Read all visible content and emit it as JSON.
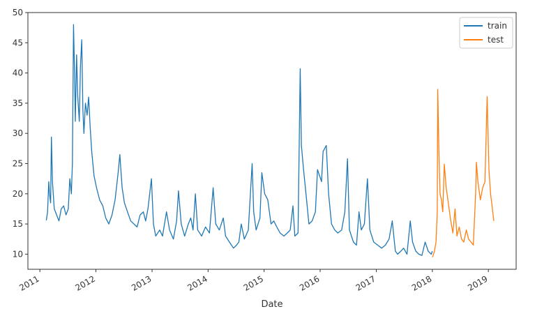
{
  "chart_data": {
    "type": "line",
    "title": "",
    "xlabel": "Date",
    "ylabel": "",
    "xlim": [
      "2010-10-15",
      "2019-07-01"
    ],
    "ylim": [
      7.5,
      50
    ],
    "yticks": [
      10,
      15,
      20,
      25,
      30,
      35,
      40,
      45,
      50
    ],
    "xticks": [
      "2011",
      "2012",
      "2013",
      "2014",
      "2015",
      "2016",
      "2017",
      "2018",
      "2019"
    ],
    "grid": false,
    "legend": "top-right",
    "series": [
      {
        "name": "train",
        "color": "#1f77b4",
        "points": [
          [
            "2011-02-12",
            15.6
          ],
          [
            "2011-02-20",
            17.0
          ],
          [
            "2011-02-28",
            22.0
          ],
          [
            "2011-03-05",
            20.0
          ],
          [
            "2011-03-12",
            18.5
          ],
          [
            "2011-03-17",
            29.4
          ],
          [
            "2011-03-24",
            22.0
          ],
          [
            "2011-04-05",
            17.5
          ],
          [
            "2011-04-20",
            16.5
          ],
          [
            "2011-05-05",
            15.5
          ],
          [
            "2011-05-20",
            17.5
          ],
          [
            "2011-06-05",
            18.0
          ],
          [
            "2011-06-20",
            16.5
          ],
          [
            "2011-07-05",
            17.5
          ],
          [
            "2011-07-15",
            22.5
          ],
          [
            "2011-07-25",
            20.0
          ],
          [
            "2011-08-01",
            25.0
          ],
          [
            "2011-08-08",
            48.0
          ],
          [
            "2011-08-15",
            40.0
          ],
          [
            "2011-08-20",
            32.0
          ],
          [
            "2011-08-28",
            43.0
          ],
          [
            "2011-09-05",
            36.0
          ],
          [
            "2011-09-15",
            32.0
          ],
          [
            "2011-09-22",
            41.0
          ],
          [
            "2011-10-01",
            45.5
          ],
          [
            "2011-10-08",
            34.0
          ],
          [
            "2011-10-15",
            30.0
          ],
          [
            "2011-10-25",
            35.0
          ],
          [
            "2011-11-05",
            33.0
          ],
          [
            "2011-11-15",
            36.0
          ],
          [
            "2011-11-25",
            31.0
          ],
          [
            "2011-12-05",
            27.0
          ],
          [
            "2011-12-20",
            23.0
          ],
          [
            "2012-01-05",
            21.0
          ],
          [
            "2012-01-25",
            19.0
          ],
          [
            "2012-02-15",
            18.0
          ],
          [
            "2012-03-05",
            16.0
          ],
          [
            "2012-03-25",
            15.0
          ],
          [
            "2012-04-15",
            16.5
          ],
          [
            "2012-05-05",
            19.0
          ],
          [
            "2012-05-25",
            23.5
          ],
          [
            "2012-06-05",
            26.5
          ],
          [
            "2012-06-20",
            21.0
          ],
          [
            "2012-07-05",
            18.5
          ],
          [
            "2012-07-25",
            17.0
          ],
          [
            "2012-08-15",
            15.5
          ],
          [
            "2012-09-05",
            15.0
          ],
          [
            "2012-09-25",
            14.5
          ],
          [
            "2012-10-15",
            16.5
          ],
          [
            "2012-11-05",
            17.0
          ],
          [
            "2012-11-20",
            15.5
          ],
          [
            "2012-12-05",
            17.5
          ],
          [
            "2012-12-28",
            22.5
          ],
          [
            "2013-01-10",
            15.0
          ],
          [
            "2013-01-25",
            13.0
          ],
          [
            "2013-02-20",
            14.0
          ],
          [
            "2013-03-10",
            13.0
          ],
          [
            "2013-04-05",
            17.0
          ],
          [
            "2013-04-25",
            14.0
          ],
          [
            "2013-05-20",
            12.5
          ],
          [
            "2013-06-10",
            15.5
          ],
          [
            "2013-06-22",
            20.5
          ],
          [
            "2013-07-10",
            15.0
          ],
          [
            "2013-08-01",
            13.0
          ],
          [
            "2013-08-25",
            15.0
          ],
          [
            "2013-09-10",
            16.0
          ],
          [
            "2013-09-25",
            14.0
          ],
          [
            "2013-10-10",
            20.0
          ],
          [
            "2013-10-25",
            14.0
          ],
          [
            "2013-11-20",
            13.0
          ],
          [
            "2013-12-15",
            14.5
          ],
          [
            "2014-01-10",
            13.5
          ],
          [
            "2014-02-03",
            21.0
          ],
          [
            "2014-02-20",
            15.0
          ],
          [
            "2014-03-15",
            14.0
          ],
          [
            "2014-04-10",
            16.0
          ],
          [
            "2014-04-25",
            13.0
          ],
          [
            "2014-05-20",
            12.0
          ],
          [
            "2014-06-15",
            11.0
          ],
          [
            "2014-07-05",
            11.5
          ],
          [
            "2014-07-20",
            12.0
          ],
          [
            "2014-08-05",
            15.0
          ],
          [
            "2014-08-25",
            12.5
          ],
          [
            "2014-09-20",
            14.0
          ],
          [
            "2014-10-15",
            25.0
          ],
          [
            "2014-10-25",
            17.0
          ],
          [
            "2014-11-10",
            14.0
          ],
          [
            "2014-12-05",
            16.0
          ],
          [
            "2014-12-17",
            23.5
          ],
          [
            "2015-01-05",
            20.0
          ],
          [
            "2015-01-25",
            19.0
          ],
          [
            "2015-02-15",
            15.0
          ],
          [
            "2015-03-05",
            15.5
          ],
          [
            "2015-03-25",
            14.5
          ],
          [
            "2015-04-15",
            13.5
          ],
          [
            "2015-05-10",
            13.0
          ],
          [
            "2015-06-01",
            13.5
          ],
          [
            "2015-06-20",
            14.0
          ],
          [
            "2015-07-08",
            18.0
          ],
          [
            "2015-07-20",
            13.0
          ],
          [
            "2015-08-10",
            13.5
          ],
          [
            "2015-08-24",
            40.7
          ],
          [
            "2015-09-01",
            28.0
          ],
          [
            "2015-09-15",
            24.0
          ],
          [
            "2015-10-01",
            20.0
          ],
          [
            "2015-10-20",
            15.0
          ],
          [
            "2015-11-10",
            15.5
          ],
          [
            "2015-12-01",
            17.0
          ],
          [
            "2015-12-15",
            24.0
          ],
          [
            "2016-01-10",
            22.0
          ],
          [
            "2016-01-20",
            27.0
          ],
          [
            "2016-02-10",
            28.0
          ],
          [
            "2016-02-25",
            20.0
          ],
          [
            "2016-03-15",
            15.0
          ],
          [
            "2016-04-05",
            14.0
          ],
          [
            "2016-04-25",
            13.5
          ],
          [
            "2016-05-20",
            14.0
          ],
          [
            "2016-06-10",
            17.0
          ],
          [
            "2016-06-27",
            25.8
          ],
          [
            "2016-07-10",
            14.0
          ],
          [
            "2016-08-05",
            12.0
          ],
          [
            "2016-08-25",
            11.5
          ],
          [
            "2016-09-10",
            17.0
          ],
          [
            "2016-09-25",
            14.0
          ],
          [
            "2016-10-15",
            15.0
          ],
          [
            "2016-11-04",
            22.5
          ],
          [
            "2016-11-20",
            14.0
          ],
          [
            "2016-12-15",
            12.0
          ],
          [
            "2017-01-10",
            11.5
          ],
          [
            "2017-02-05",
            11.0
          ],
          [
            "2017-03-01",
            11.5
          ],
          [
            "2017-03-25",
            12.5
          ],
          [
            "2017-04-15",
            15.5
          ],
          [
            "2017-05-05",
            10.5
          ],
          [
            "2017-05-20",
            10.0
          ],
          [
            "2017-06-10",
            10.5
          ],
          [
            "2017-06-28",
            11.0
          ],
          [
            "2017-07-20",
            10.0
          ],
          [
            "2017-08-10",
            15.5
          ],
          [
            "2017-08-25",
            12.0
          ],
          [
            "2017-09-15",
            10.5
          ],
          [
            "2017-10-05",
            10.0
          ],
          [
            "2017-10-25",
            9.8
          ],
          [
            "2017-11-15",
            12.0
          ],
          [
            "2017-12-05",
            10.5
          ],
          [
            "2017-12-25",
            10.0
          ],
          [
            "2018-01-01",
            10.5
          ]
        ]
      },
      {
        "name": "test",
        "color": "#ff7f0e",
        "points": [
          [
            "2018-01-02",
            9.5
          ],
          [
            "2018-01-15",
            10.5
          ],
          [
            "2018-01-25",
            12.0
          ],
          [
            "2018-02-02",
            17.0
          ],
          [
            "2018-02-05",
            37.3
          ],
          [
            "2018-02-12",
            28.0
          ],
          [
            "2018-02-20",
            20.0
          ],
          [
            "2018-03-01",
            19.0
          ],
          [
            "2018-03-10",
            17.0
          ],
          [
            "2018-03-20",
            24.9
          ],
          [
            "2018-04-01",
            21.0
          ],
          [
            "2018-04-15",
            18.5
          ],
          [
            "2018-05-01",
            15.5
          ],
          [
            "2018-05-15",
            13.5
          ],
          [
            "2018-05-29",
            17.5
          ],
          [
            "2018-06-10",
            13.0
          ],
          [
            "2018-06-25",
            14.5
          ],
          [
            "2018-07-10",
            12.5
          ],
          [
            "2018-07-25",
            12.0
          ],
          [
            "2018-08-10",
            14.0
          ],
          [
            "2018-08-25",
            12.5
          ],
          [
            "2018-09-10",
            12.0
          ],
          [
            "2018-09-25",
            11.5
          ],
          [
            "2018-10-10",
            20.0
          ],
          [
            "2018-10-15",
            25.2
          ],
          [
            "2018-10-25",
            22.0
          ],
          [
            "2018-11-10",
            19.0
          ],
          [
            "2018-11-25",
            21.0
          ],
          [
            "2018-12-10",
            22.0
          ],
          [
            "2018-12-24",
            36.1
          ],
          [
            "2019-01-05",
            24.0
          ],
          [
            "2019-01-15",
            20.0
          ],
          [
            "2019-01-25",
            18.0
          ],
          [
            "2019-02-05",
            15.5
          ]
        ]
      }
    ]
  }
}
